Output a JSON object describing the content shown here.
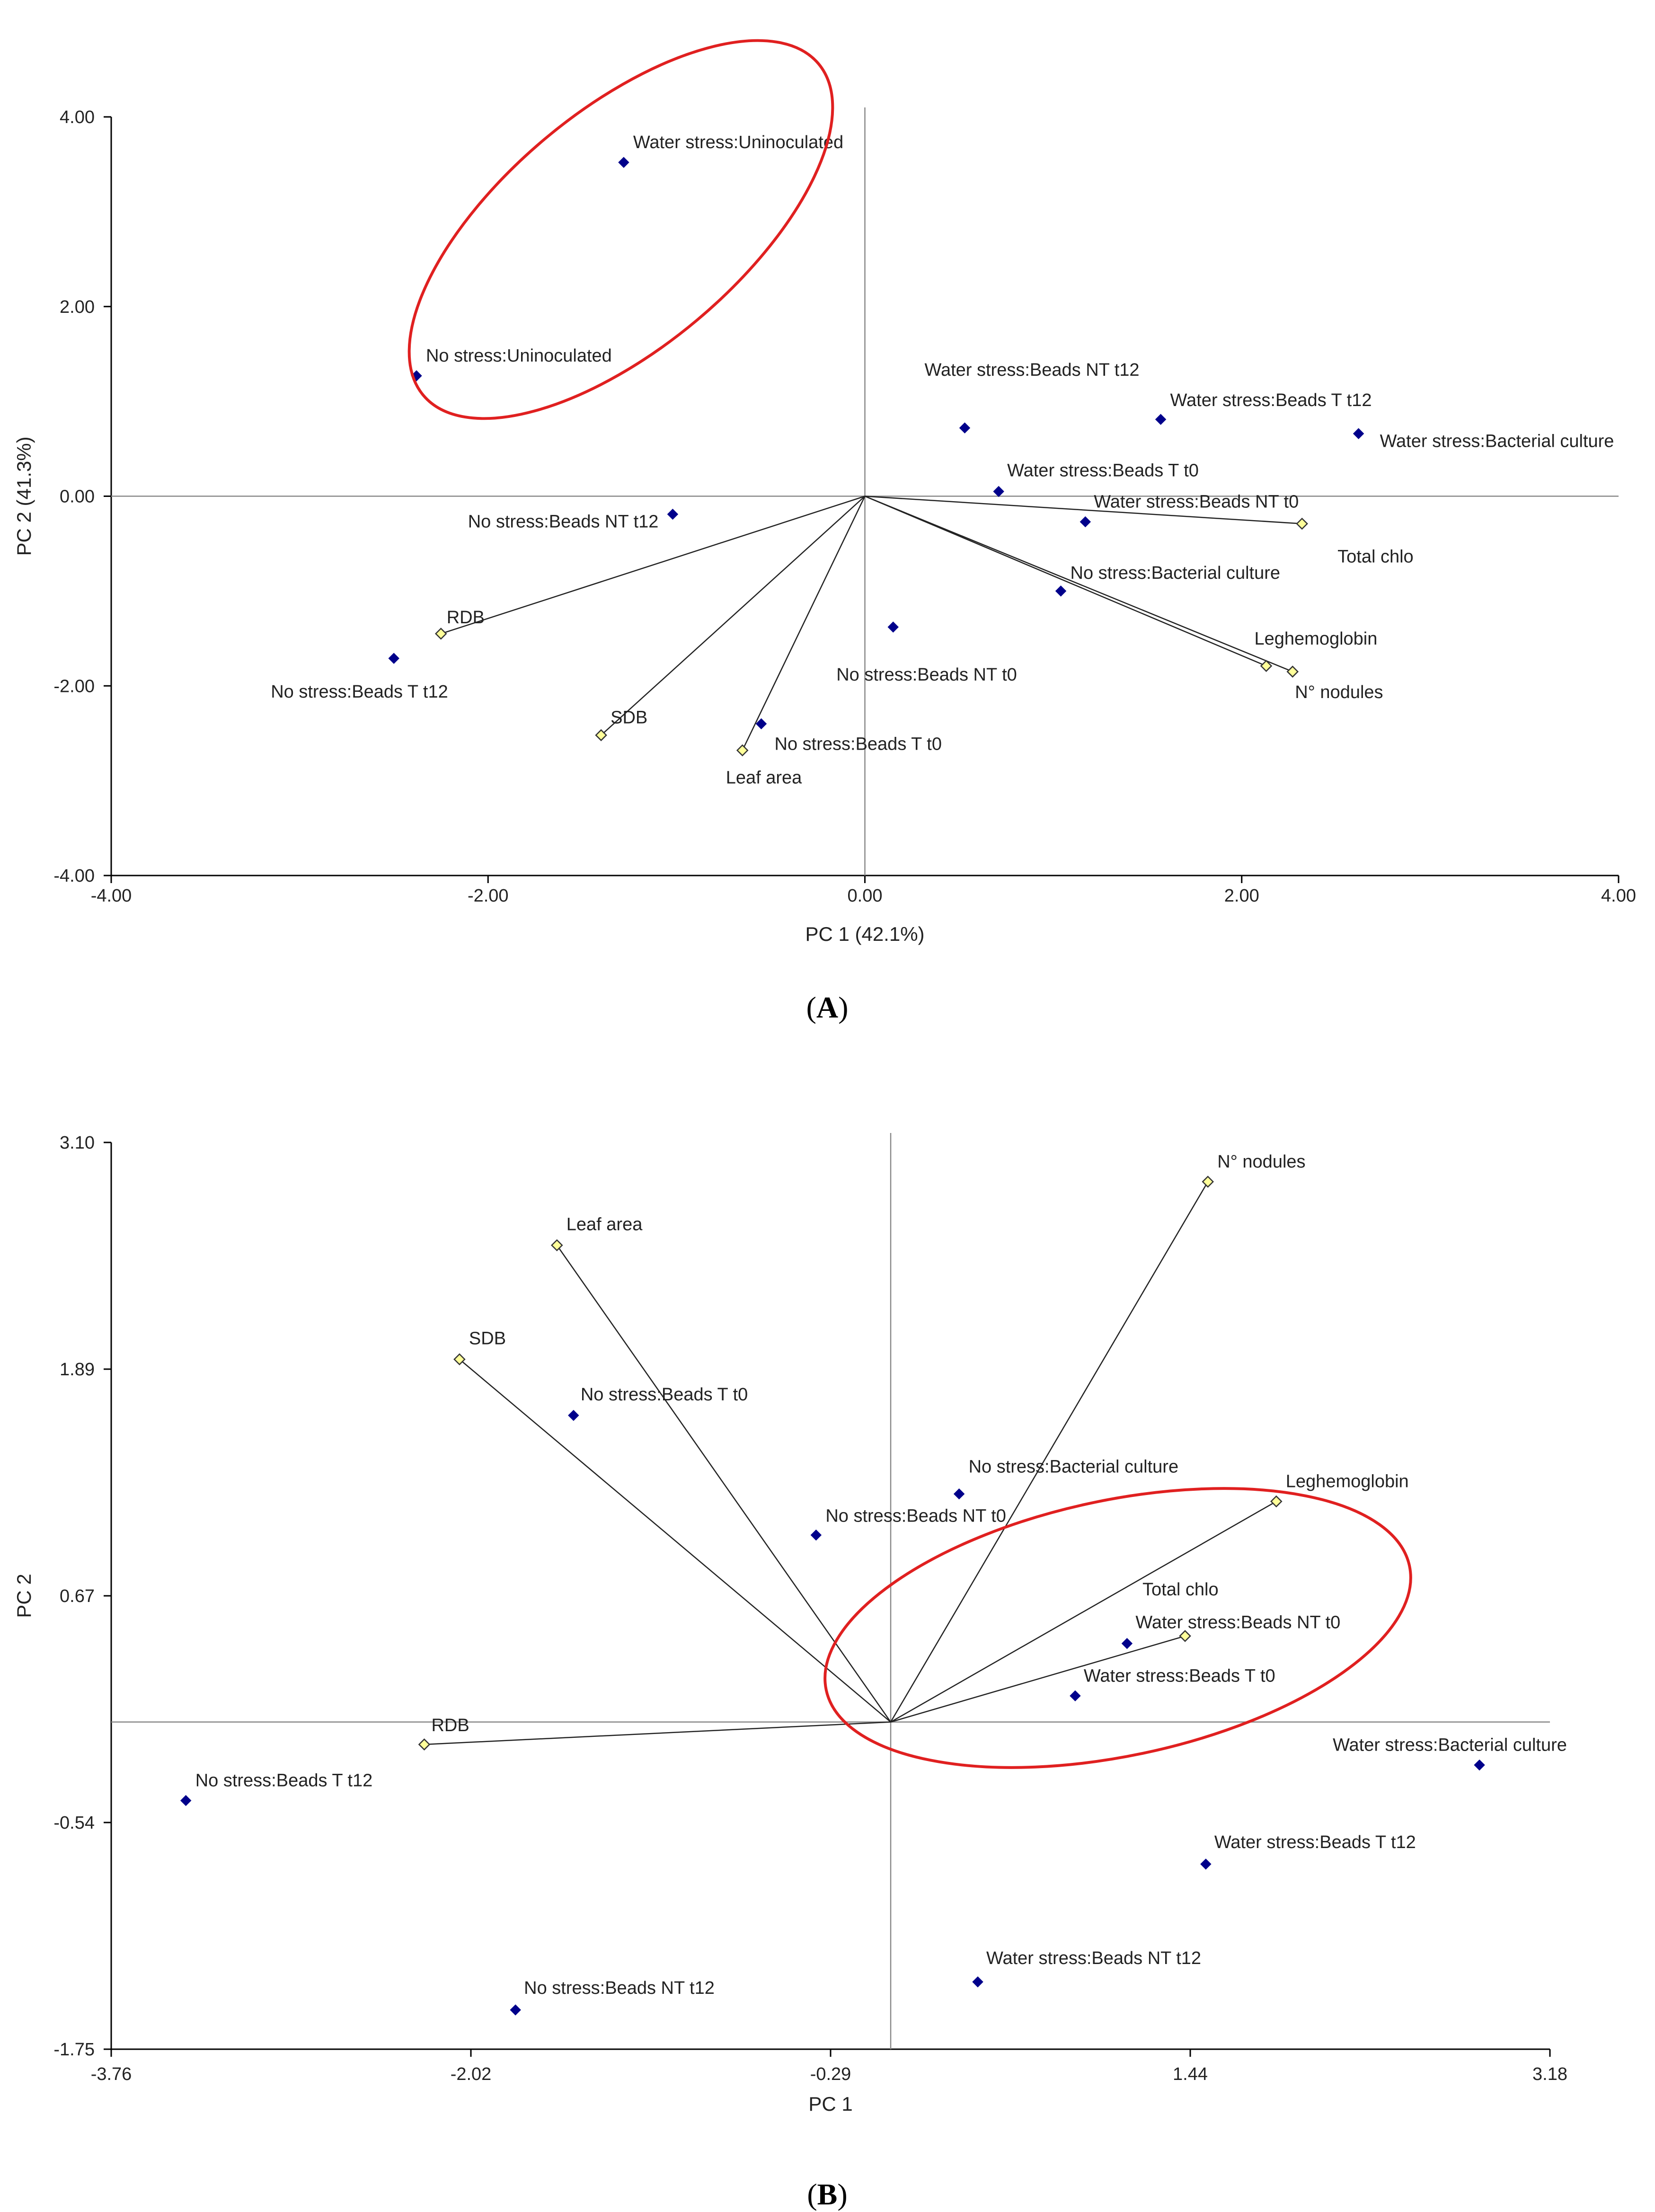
{
  "chart_data": [
    {
      "type": "biplot",
      "panel_label": "A",
      "xlabel": "PC 1 (42.1%)",
      "ylabel": "PC 2 (41.3%)",
      "xlim": [
        -4.0,
        4.0
      ],
      "ylim": [
        -4.0,
        4.0
      ],
      "xticks": [
        "-4.00",
        "-2.00",
        "0.00",
        "2.00",
        "4.00"
      ],
      "yticks": [
        "-4.00",
        "-2.00",
        "0.00",
        "2.00",
        "4.00"
      ],
      "colors": {
        "scores": "#00008B",
        "loadings": "#FFFF99",
        "highlight": "#E02020"
      },
      "scores": [
        {
          "label": "Water stress:Uninoculated",
          "x": -1.28,
          "y": 3.52
        },
        {
          "label": "No stress:Uninoculated",
          "x": -2.38,
          "y": 1.27
        },
        {
          "label": "Water stress:Beads NT t12",
          "x": 0.53,
          "y": 0.72
        },
        {
          "label": "Water stress:Beads T t12",
          "x": 1.57,
          "y": 0.81
        },
        {
          "label": "Water stress:Bacterial culture",
          "x": 2.62,
          "y": 0.66
        },
        {
          "label": "Water stress:Beads T t0",
          "x": 0.71,
          "y": 0.05
        },
        {
          "label": "Water stress:Beads NT t0",
          "x": 1.17,
          "y": -0.27
        },
        {
          "label": "No stress:Beads NT t12",
          "x": -1.02,
          "y": -0.19
        },
        {
          "label": "No stress:Bacterial culture",
          "x": 1.04,
          "y": -1.0
        },
        {
          "label": "No stress:Beads NT t0",
          "x": 0.15,
          "y": -1.38
        },
        {
          "label": "No stress:Beads T t12",
          "x": -2.5,
          "y": -1.71
        },
        {
          "label": "No stress:Beads T t0",
          "x": -0.55,
          "y": -2.4
        }
      ],
      "loadings": [
        {
          "label": "Total chlo",
          "x": 2.32,
          "y": -0.29
        },
        {
          "label": "Leghemoglobin",
          "x": 2.13,
          "y": -1.79
        },
        {
          "label": "N° nodules",
          "x": 2.27,
          "y": -1.85
        },
        {
          "label": "RDB",
          "x": -2.25,
          "y": -1.45
        },
        {
          "label": "SDB",
          "x": -1.4,
          "y": -2.52
        },
        {
          "label": "Leaf area",
          "x": -0.65,
          "y": -2.68
        }
      ],
      "highlighted_group": [
        "Water stress:Uninoculated",
        "No stress:Uninoculated"
      ]
    },
    {
      "type": "biplot",
      "panel_label": "B",
      "xlabel": "PC 1",
      "ylabel": "PC 2",
      "xlim": [
        -3.76,
        3.18
      ],
      "ylim": [
        -1.75,
        3.1
      ],
      "xticks": [
        "-3.76",
        "-2.02",
        "-0.29",
        "1.44",
        "3.18"
      ],
      "yticks": [
        "-1.75",
        "-0.54",
        "0.67",
        "1.89",
        "3.10"
      ],
      "colors": {
        "scores": "#00008B",
        "loadings": "#FFFF99",
        "highlight": "#E02020"
      },
      "scores": [
        {
          "label": "No stress:Beads T t0",
          "x": -1.53,
          "y": 1.64
        },
        {
          "label": "No stress:Bacterial culture",
          "x": 0.33,
          "y": 1.22
        },
        {
          "label": "No stress:Beads NT t0",
          "x": -0.36,
          "y": 1.0
        },
        {
          "label": "Water stress:Beads NT t0",
          "x": 1.14,
          "y": 0.42
        },
        {
          "label": "Water stress:Beads T t0",
          "x": 0.89,
          "y": 0.14
        },
        {
          "label": "Water stress:Bacterial culture",
          "x": 2.84,
          "y": -0.23
        },
        {
          "label": "No stress:Beads T t12",
          "x": -3.4,
          "y": -0.42
        },
        {
          "label": "Water stress:Beads T t12",
          "x": 1.52,
          "y": -0.76
        },
        {
          "label": "Water stress:Beads NT t12",
          "x": 0.42,
          "y": -1.39
        },
        {
          "label": "No stress:Beads NT t12",
          "x": -1.81,
          "y": -1.54
        }
      ],
      "loadings": [
        {
          "label": "N° nodules",
          "x": 1.53,
          "y": 2.89
        },
        {
          "label": "Leaf area",
          "x": -1.61,
          "y": 2.55
        },
        {
          "label": "SDB",
          "x": -2.08,
          "y": 1.94
        },
        {
          "label": "Leghemoglobin",
          "x": 1.86,
          "y": 1.18
        },
        {
          "label": "Total chlo",
          "x": 1.42,
          "y": 0.46
        },
        {
          "label": "RDB",
          "x": -2.25,
          "y": -0.12
        }
      ],
      "highlighted_group": [
        "Water stress:Beads NT t0",
        "Water stress:Beads T t0",
        "Leghemoglobin",
        "Total chlo"
      ]
    }
  ]
}
